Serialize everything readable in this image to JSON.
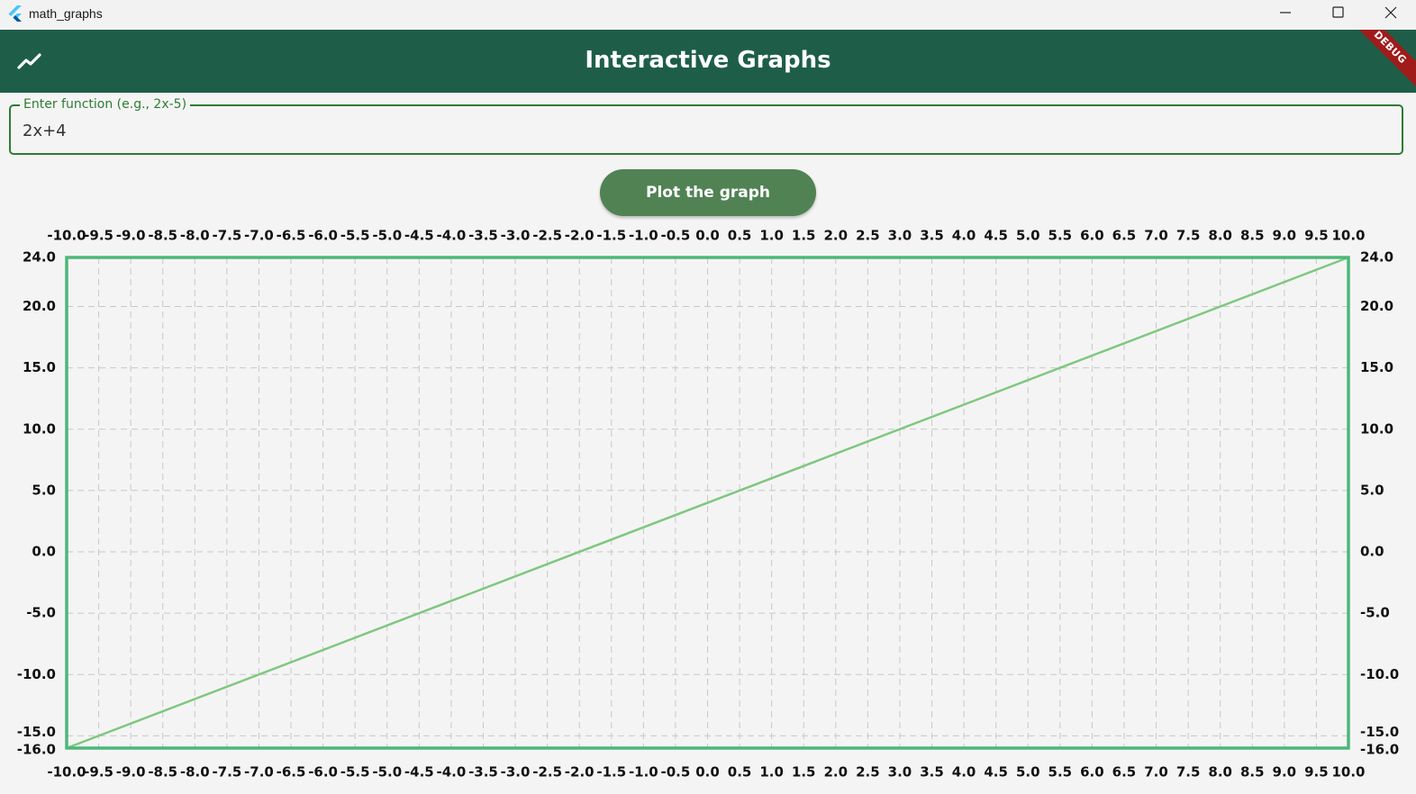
{
  "window": {
    "title": "math_graphs",
    "logo_icon": "flutter-logo-icon",
    "controls": [
      "minimize-icon",
      "maximize-icon",
      "close-icon"
    ]
  },
  "appbar": {
    "title": "Interactive Graphs",
    "icon": "trending-up-icon",
    "debug_banner": "DEBUG",
    "color": "#1e5e48"
  },
  "input": {
    "label": "Enter function (e.g., 2x-5)",
    "value": "2x+4",
    "border_color": "#2e7d32"
  },
  "button": {
    "label": "Plot the graph",
    "color": "#518254"
  },
  "chart_data": {
    "type": "line",
    "title": "",
    "xlabel": "",
    "ylabel": "",
    "xlim": [
      -10.0,
      10.0
    ],
    "ylim": [
      -16.0,
      24.0
    ],
    "x_ticks": [
      "-10.0",
      "-9.5",
      "-9.0",
      "-8.5",
      "-8.0",
      "-7.5",
      "-7.0",
      "-6.5",
      "-6.0",
      "-5.5",
      "-5.0",
      "-4.5",
      "-4.0",
      "-3.5",
      "-3.0",
      "-2.5",
      "-2.0",
      "-1.5",
      "-1.0",
      "-0.5",
      "0.0",
      "0.5",
      "1.0",
      "1.5",
      "2.0",
      "2.5",
      "3.0",
      "3.5",
      "4.0",
      "4.5",
      "5.0",
      "5.5",
      "6.0",
      "6.5",
      "7.0",
      "7.5",
      "8.0",
      "8.5",
      "9.0",
      "9.5",
      "10.0"
    ],
    "y_ticks": [
      "-16.0",
      "-15.0",
      "-10.0",
      "-5.0",
      "0.0",
      "5.0",
      "10.0",
      "15.0",
      "20.0",
      "24.0"
    ],
    "x_tick_axes": [
      "top",
      "bottom"
    ],
    "y_tick_axes": [
      "left",
      "right"
    ],
    "grid": true,
    "grid_style": "dashed",
    "border_color": "#4cb87a",
    "series": [
      {
        "x": [
          -10.0,
          10.0
        ],
        "y": [
          -16.0,
          24.0
        ],
        "color": "#7ec87f"
      }
    ]
  }
}
